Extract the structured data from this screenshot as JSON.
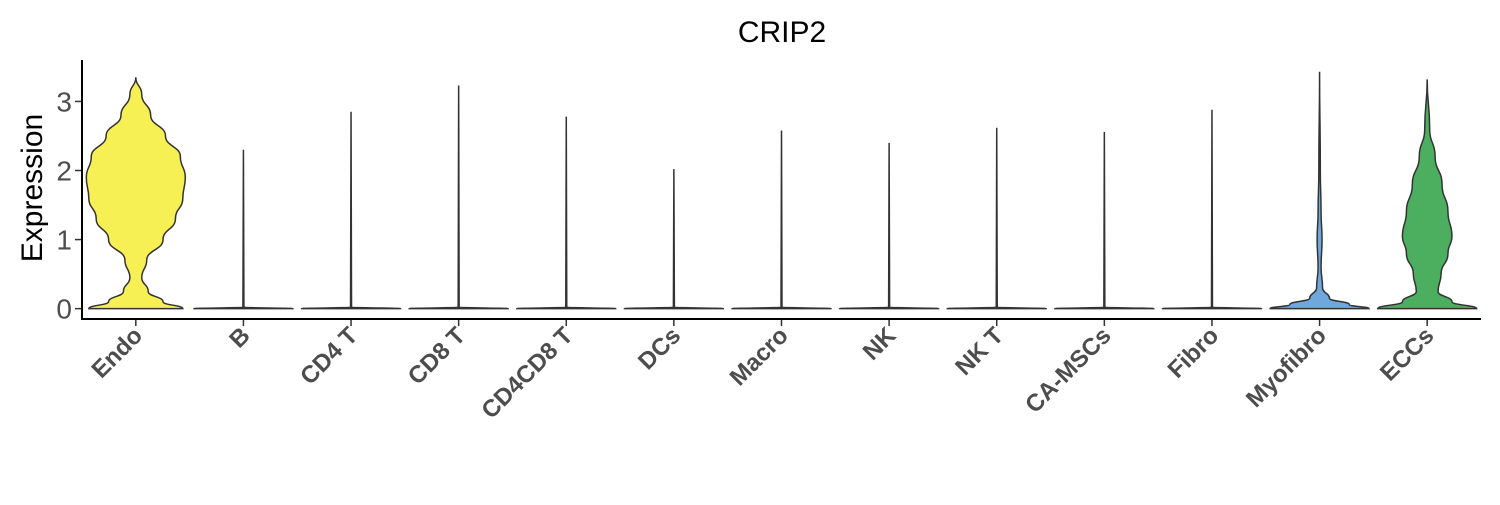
{
  "chart_data": {
    "type": "violin",
    "title": "CRIP2",
    "ylabel": "Expression",
    "xlabel": "",
    "ylim": [
      -0.15,
      3.6
    ],
    "yticks": [
      0,
      1,
      2,
      3
    ],
    "grid": false,
    "legend": "none",
    "categories": [
      "Endo",
      "B",
      "CD4 T",
      "CD8 T",
      "CD4CD8 T",
      "DCs",
      "Macro",
      "NK",
      "NK T",
      "CA-MSCs",
      "Fibro",
      "Myofibro",
      "ECCs"
    ],
    "series": [
      {
        "category": "Endo",
        "color": "#f7f055",
        "max": 3.35,
        "profile": [
          [
            0,
            0.95
          ],
          [
            0.1,
            0.55
          ],
          [
            0.25,
            0.25
          ],
          [
            0.45,
            0.12
          ],
          [
            0.7,
            0.22
          ],
          [
            1.0,
            0.55
          ],
          [
            1.3,
            0.8
          ],
          [
            1.6,
            0.95
          ],
          [
            1.9,
            1.0
          ],
          [
            2.2,
            0.9
          ],
          [
            2.5,
            0.6
          ],
          [
            2.8,
            0.3
          ],
          [
            3.1,
            0.12
          ],
          [
            3.35,
            0.0
          ]
        ]
      },
      {
        "category": "B",
        "color": "#333333",
        "max": 2.3,
        "profile": [
          [
            0,
            1.0
          ],
          [
            0.02,
            0.01
          ],
          [
            2.3,
            0.0
          ]
        ]
      },
      {
        "category": "CD4 T",
        "color": "#333333",
        "max": 2.85,
        "profile": [
          [
            0,
            1.0
          ],
          [
            0.02,
            0.01
          ],
          [
            2.85,
            0.0
          ]
        ]
      },
      {
        "category": "CD8 T",
        "color": "#333333",
        "max": 3.23,
        "profile": [
          [
            0,
            1.0
          ],
          [
            0.02,
            0.01
          ],
          [
            3.23,
            0.0
          ]
        ]
      },
      {
        "category": "CD4CD8 T",
        "color": "#333333",
        "max": 2.78,
        "profile": [
          [
            0,
            1.0
          ],
          [
            0.02,
            0.01
          ],
          [
            2.78,
            0.0
          ]
        ]
      },
      {
        "category": "DCs",
        "color": "#333333",
        "max": 2.02,
        "profile": [
          [
            0,
            1.0
          ],
          [
            0.02,
            0.01
          ],
          [
            2.02,
            0.0
          ]
        ]
      },
      {
        "category": "Macro",
        "color": "#333333",
        "max": 2.58,
        "profile": [
          [
            0,
            1.0
          ],
          [
            0.02,
            0.01
          ],
          [
            2.58,
            0.0
          ]
        ]
      },
      {
        "category": "NK",
        "color": "#333333",
        "max": 2.4,
        "profile": [
          [
            0,
            1.0
          ],
          [
            0.02,
            0.01
          ],
          [
            2.4,
            0.0
          ]
        ]
      },
      {
        "category": "NK T",
        "color": "#333333",
        "max": 2.62,
        "profile": [
          [
            0,
            1.0
          ],
          [
            0.02,
            0.01
          ],
          [
            2.62,
            0.0
          ]
        ]
      },
      {
        "category": "CA-MSCs",
        "color": "#333333",
        "max": 2.56,
        "profile": [
          [
            0,
            1.0
          ],
          [
            0.02,
            0.01
          ],
          [
            2.56,
            0.0
          ]
        ]
      },
      {
        "category": "Fibro",
        "color": "#333333",
        "max": 2.88,
        "profile": [
          [
            0,
            1.0
          ],
          [
            0.02,
            0.01
          ],
          [
            2.88,
            0.0
          ]
        ]
      },
      {
        "category": "Myofibro",
        "color": "#6fa8dc",
        "max": 3.43,
        "profile": [
          [
            0,
            1.0
          ],
          [
            0.06,
            0.6
          ],
          [
            0.15,
            0.2
          ],
          [
            0.3,
            0.06
          ],
          [
            0.6,
            0.03
          ],
          [
            1.0,
            0.05
          ],
          [
            1.4,
            0.03
          ],
          [
            2.0,
            0.015
          ],
          [
            3.43,
            0.0
          ]
        ]
      },
      {
        "category": "ECCs",
        "color": "#4caf60",
        "max": 3.32,
        "profile": [
          [
            0,
            1.0
          ],
          [
            0.1,
            0.5
          ],
          [
            0.25,
            0.22
          ],
          [
            0.5,
            0.28
          ],
          [
            0.8,
            0.42
          ],
          [
            1.05,
            0.5
          ],
          [
            1.4,
            0.42
          ],
          [
            1.8,
            0.3
          ],
          [
            2.2,
            0.16
          ],
          [
            2.6,
            0.05
          ],
          [
            3.32,
            0.0
          ]
        ]
      }
    ]
  }
}
